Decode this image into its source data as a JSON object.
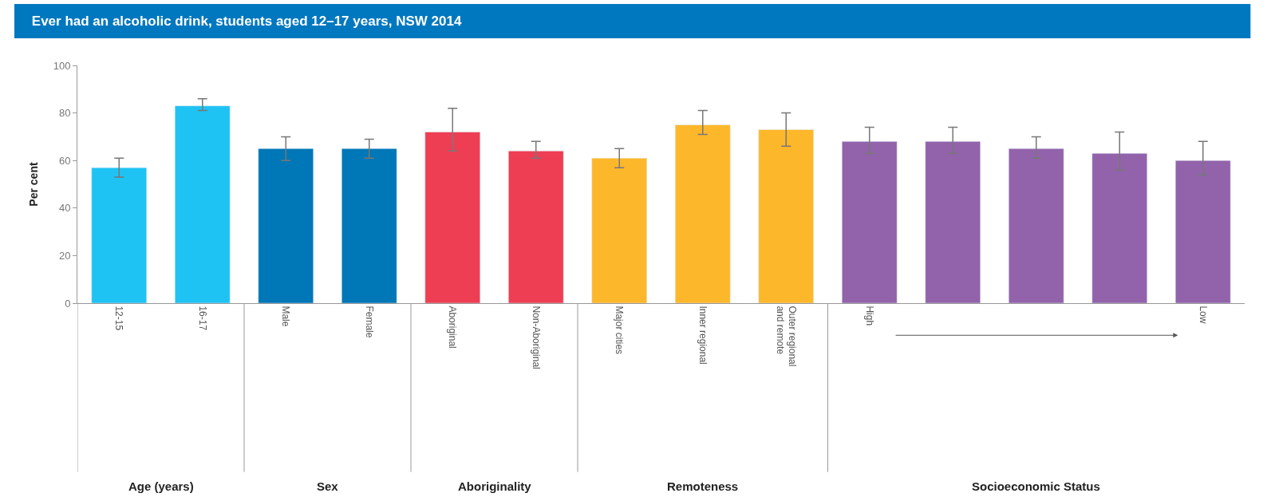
{
  "chart_data": {
    "type": "bar",
    "title": "Ever had an alcoholic drink, students aged 12–17 years, NSW 2014",
    "ylabel": "Per cent",
    "categories": [
      "12-15",
      "16-17",
      "Male",
      "Female",
      "Aboriginal",
      "Non-Aboriginal",
      "Major cities",
      "Inner regional",
      "Outer regional\nand remote",
      "High",
      null,
      null,
      null,
      "Low"
    ],
    "series": [
      {
        "color": "#1fc3f3",
        "values": [
          57,
          83,
          null,
          null,
          null,
          null,
          null,
          null,
          null,
          null,
          null,
          null,
          null,
          null
        ],
        "errors": [
          [
            53,
            61
          ],
          [
            81,
            86
          ],
          null,
          null,
          null,
          null,
          null,
          null,
          null,
          null,
          null,
          null,
          null,
          null
        ]
      },
      {
        "color": "#0077b6",
        "values": [
          null,
          null,
          65,
          65,
          null,
          null,
          null,
          null,
          null,
          null,
          null,
          null,
          null,
          null
        ],
        "errors": [
          null,
          null,
          [
            60,
            70
          ],
          [
            61,
            69
          ],
          null,
          null,
          null,
          null,
          null,
          null,
          null,
          null,
          null,
          null
        ]
      },
      {
        "color": "#ee3e54",
        "values": [
          null,
          null,
          null,
          null,
          72,
          64,
          null,
          null,
          null,
          null,
          null,
          null,
          null,
          null
        ],
        "errors": [
          null,
          null,
          null,
          null,
          [
            64,
            82
          ],
          [
            61,
            68
          ],
          null,
          null,
          null,
          null,
          null,
          null,
          null,
          null
        ]
      },
      {
        "color": "#fdb72b",
        "values": [
          null,
          null,
          null,
          null,
          null,
          null,
          61,
          75,
          73,
          null,
          null,
          null,
          null,
          null
        ],
        "errors": [
          null,
          null,
          null,
          null,
          null,
          null,
          [
            57,
            65
          ],
          [
            71,
            81
          ],
          [
            66,
            80
          ],
          null,
          null,
          null,
          null,
          null
        ]
      },
      {
        "color": "#9263ab",
        "values": [
          null,
          null,
          null,
          null,
          null,
          null,
          null,
          null,
          null,
          68,
          68,
          65,
          63,
          60
        ],
        "errors": [
          null,
          null,
          null,
          null,
          null,
          null,
          null,
          null,
          null,
          [
            63,
            74
          ],
          [
            63,
            74
          ],
          [
            61,
            70
          ],
          [
            56,
            72
          ],
          [
            54,
            68
          ]
        ]
      }
    ],
    "annotations": [
      "Age (years)",
      "Sex",
      "Aboriginality",
      "Remoteness",
      "Socioeconomic Status"
    ],
    "ylim": [
      0,
      100
    ],
    "yticks": [
      0,
      20,
      40,
      60,
      80,
      100
    ]
  }
}
